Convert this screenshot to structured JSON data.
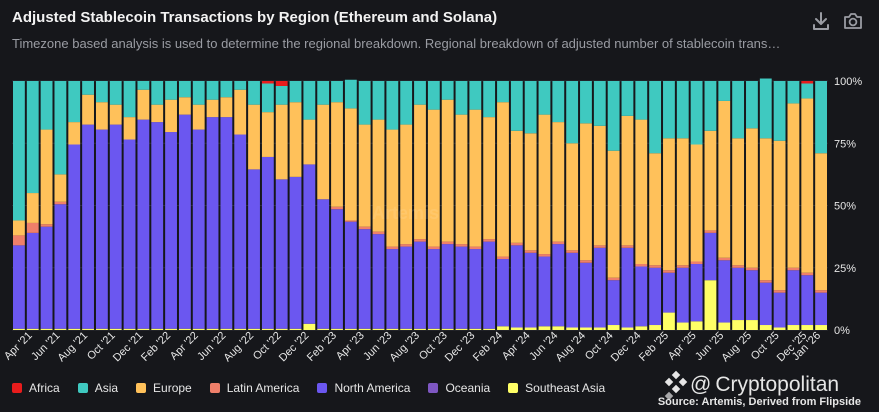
{
  "header": {
    "title": "Adjusted Stablecoin Transactions by Region (Ethereum and Solana)",
    "subtitle": "Timezone based analysis is used to determine the regional breakdown. Regional breakdown of adjusted number of stablecoin trans…"
  },
  "toolbar": {
    "download_icon": "download-icon",
    "camera_icon": "camera-icon"
  },
  "watermark": "Artemis",
  "branding": {
    "logo_icon": "cryptopolitan-logo",
    "at": "@",
    "name": "Cryptopolitan"
  },
  "source": "Source: Artemis, Derived from Flipside",
  "colors": {
    "Africa": "#e81c1c",
    "Asia": "#3fc9c0",
    "Europe": "#ffc15a",
    "Latin America": "#ef7f6a",
    "North America": "#6b57f0",
    "Oceania": "#7e57c2",
    "Southeast Asia": "#ffff66"
  },
  "chart_data": {
    "type": "bar",
    "stacked": "percent",
    "title": "Adjusted Stablecoin Transactions by Region (Ethereum and Solana)",
    "ylim": [
      0,
      100
    ],
    "yticks": [
      "0%",
      "25%",
      "50%",
      "75%",
      "100%"
    ],
    "grid": true,
    "legend_position": "bottom-left",
    "xtick_labels": [
      "Apr '21",
      "Jun '21",
      "Aug '21",
      "Oct '21",
      "Dec '21",
      "Feb '22",
      "Apr '22",
      "Jun '22",
      "Aug '22",
      "Oct '22",
      "Dec '22",
      "Feb '23",
      "Apr '23",
      "Jun '23",
      "Aug '23",
      "Oct '23",
      "Dec '23",
      "Feb '24",
      "Apr '24",
      "Jun '24",
      "Aug '24",
      "Oct '24",
      "Dec '24",
      "Feb '25",
      "Apr '25",
      "Jun '25",
      "Aug '25",
      "Oct '25",
      "Dec '25",
      "Jan '26"
    ],
    "series_names": [
      "Southeast Asia",
      "Oceania",
      "North America",
      "Latin America",
      "Europe",
      "Asia",
      "Africa"
    ],
    "periods": 59,
    "data": {
      "Southeast Asia": [
        0.5,
        0.5,
        0.5,
        0.5,
        0.5,
        0.5,
        0.5,
        0.5,
        0.5,
        0.5,
        0.5,
        0.5,
        0.5,
        0.5,
        0.5,
        0.5,
        0.5,
        0.5,
        0.5,
        0.5,
        0.5,
        2.5,
        0.5,
        0.5,
        0.5,
        0.5,
        0.5,
        0.5,
        0.5,
        0.5,
        0.5,
        0.5,
        0.5,
        0.5,
        0.5,
        1.5,
        1,
        1,
        1.5,
        1.5,
        1,
        1,
        1,
        2,
        1,
        1.5,
        2,
        7,
        3,
        3.5,
        20,
        3,
        4,
        4,
        2,
        1,
        2,
        2,
        2
      ],
      "Oceania": [
        0,
        0,
        0,
        0,
        0,
        0,
        0,
        0,
        0,
        0,
        0,
        0,
        0,
        0,
        0,
        0,
        0,
        0,
        0,
        0,
        0,
        0,
        0,
        0,
        0,
        0,
        0,
        0,
        0,
        0,
        0,
        0,
        0,
        0,
        0,
        0,
        0,
        0,
        0,
        0,
        0,
        0,
        0,
        0,
        0,
        0,
        0,
        0,
        0,
        0,
        0,
        0,
        0,
        0,
        0,
        0,
        0,
        0,
        0
      ],
      "North America": [
        33.5,
        38.5,
        41,
        50,
        74,
        82,
        80,
        82,
        76,
        84,
        83,
        79,
        86,
        80,
        85,
        85,
        78,
        64,
        69,
        60,
        61,
        64,
        52,
        48,
        43,
        40,
        38,
        32,
        33,
        35,
        32,
        34,
        33,
        32,
        35,
        27,
        33,
        30,
        28,
        33,
        30,
        26,
        32,
        18,
        32,
        24,
        23,
        16,
        22,
        23,
        19,
        25,
        21,
        20,
        17,
        14,
        22,
        20,
        13
      ],
      "Latin America": [
        4,
        4,
        1,
        1,
        0,
        0,
        0,
        0,
        0,
        0,
        0,
        0,
        0,
        0,
        0,
        0,
        0,
        0,
        0,
        0,
        0,
        0,
        0,
        1,
        0.5,
        1,
        1,
        1,
        1,
        1,
        1,
        1,
        1,
        1,
        1,
        1,
        1,
        1,
        1,
        1,
        1,
        1,
        1,
        1,
        1,
        1,
        1,
        1,
        1,
        1,
        1,
        1,
        1,
        1,
        1,
        1,
        1,
        1,
        1
      ],
      "Europe": [
        6,
        12,
        38,
        11,
        9,
        12,
        11,
        8,
        9,
        12,
        7,
        13,
        7,
        10,
        7,
        8,
        18,
        26,
        18,
        30,
        30,
        18,
        38,
        42,
        45,
        41,
        45,
        47,
        48,
        54,
        55,
        57,
        52,
        55,
        49,
        62,
        45,
        47,
        56,
        48,
        43,
        55,
        48,
        51,
        52,
        58,
        45,
        53,
        51,
        47,
        40,
        63,
        51,
        56,
        57,
        60,
        66,
        70,
        55
      ],
      "Asia": [
        56,
        45,
        19.5,
        37.5,
        16.5,
        5.5,
        8.5,
        9.5,
        14.5,
        3.5,
        9.5,
        7.5,
        6.5,
        9.5,
        7.5,
        6.5,
        3.5,
        9.5,
        11.5,
        7.5,
        8.5,
        15.5,
        9.5,
        8.5,
        11.5,
        17.5,
        15.5,
        19.5,
        17.5,
        9.5,
        11.5,
        7.5,
        13.5,
        11.5,
        14.5,
        8.5,
        20,
        21,
        13.5,
        16.5,
        25,
        17,
        18,
        28,
        14,
        15.5,
        29,
        23,
        23,
        25.5,
        20,
        8,
        23,
        19,
        24,
        24,
        9,
        6,
        29
      ]
    },
    "africa_note": "Africa share ≈0–2% on most bars (thin red caps at top)"
  }
}
